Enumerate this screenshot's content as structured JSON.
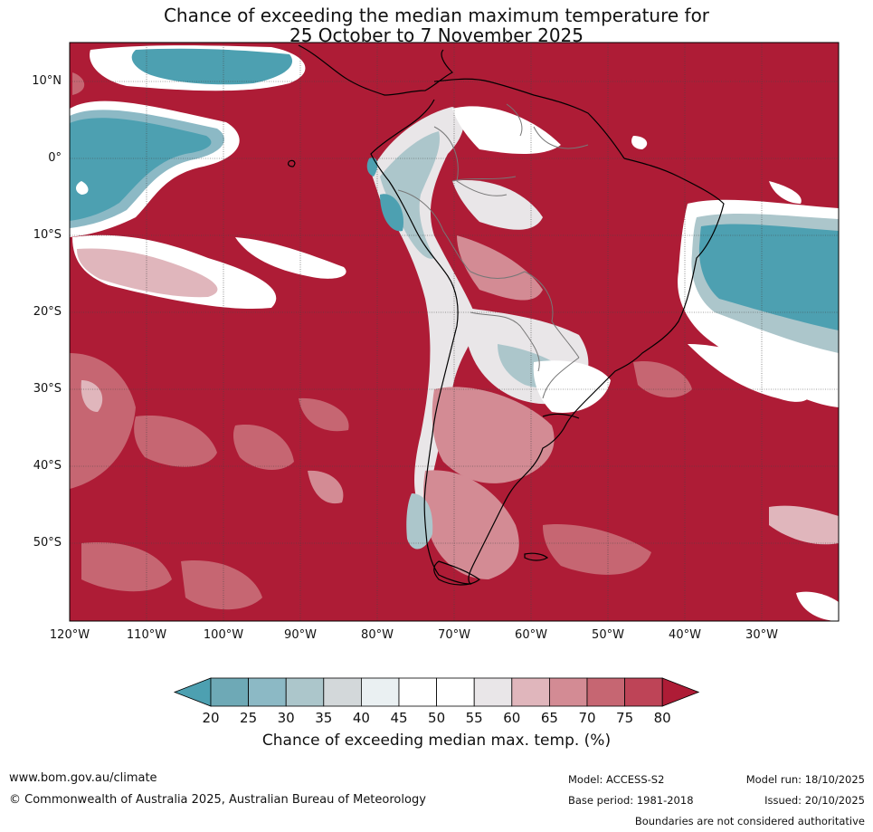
{
  "title": {
    "line1": "Chance of exceeding the median maximum temperature for",
    "line2": "25 October to 7 November 2025"
  },
  "map": {
    "lat_labels": [
      "10°N",
      "0°",
      "10°S",
      "20°S",
      "30°S",
      "40°S",
      "50°S"
    ],
    "lon_labels": [
      "120°W",
      "110°W",
      "100°W",
      "90°W",
      "80°W",
      "70°W",
      "60°W",
      "50°W",
      "40°W",
      "30°W"
    ],
    "lat_range": [
      -60,
      15
    ],
    "lon_range": [
      -120,
      -20
    ],
    "gridlines": true,
    "colors": {
      "high": "#ae1c36",
      "low": "#4da0b1",
      "land_outline": "#000000",
      "border": "#777777"
    }
  },
  "colorbar": {
    "ticks": [
      "20",
      "25",
      "30",
      "35",
      "40",
      "45",
      "50",
      "55",
      "60",
      "65",
      "70",
      "75",
      "80"
    ],
    "colors": [
      "#4da0b1",
      "#6ea9b6",
      "#8cb9c5",
      "#acc6cb",
      "#d3d8da",
      "#eaf0f2",
      "#ffffff",
      "#ffffff",
      "#e9e6e8",
      "#e0b6bc",
      "#d38b94",
      "#c66672",
      "#be4457",
      "#ae1c36"
    ],
    "label": "Chance of exceeding median max. temp. (%)"
  },
  "footer": {
    "website": "www.bom.gov.au/climate",
    "copyright": "© Commonwealth of Australia 2025, Australian Bureau of Meteorology",
    "model": "Model: ACCESS-S2",
    "base_period": "Base period: 1981-2018",
    "model_run": "Model run: 18/10/2025",
    "issued": "Issued: 20/10/2025",
    "disclaimer": "Boundaries are not considered authoritative"
  }
}
